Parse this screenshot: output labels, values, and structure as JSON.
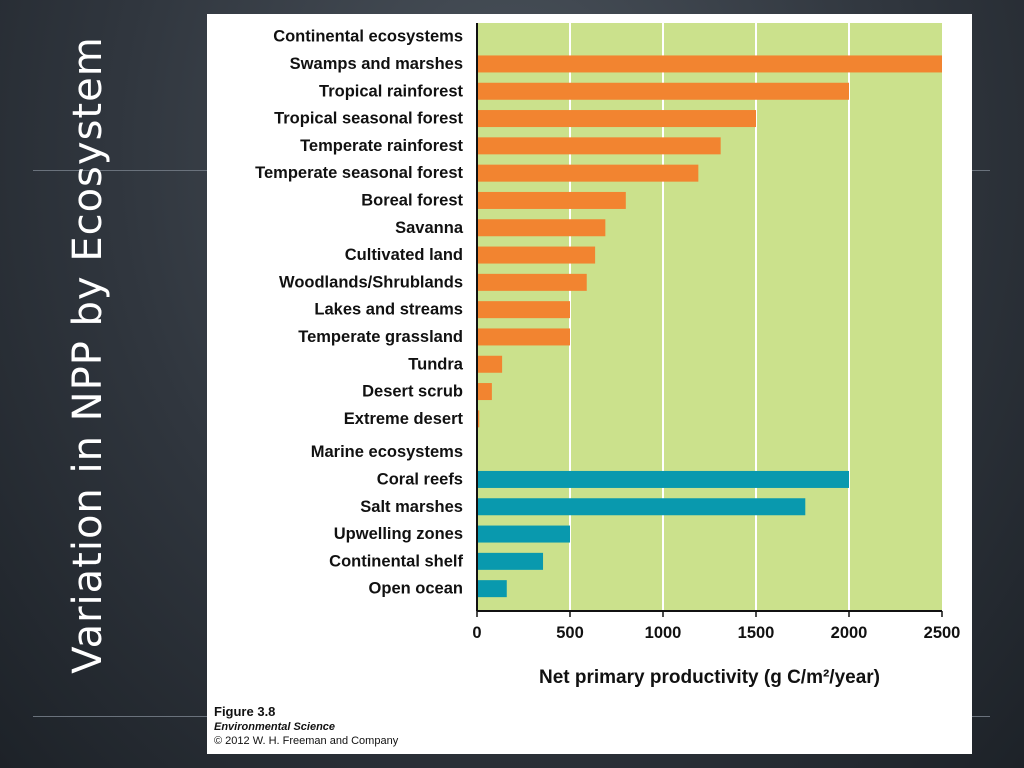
{
  "slide": {
    "title": "Variation in NPP by Ecosystem"
  },
  "figure": {
    "number": "Figure 3.8",
    "book": "Environmental Science",
    "copyright": "© 2012 W. H. Freeman and Company"
  },
  "colors": {
    "continental": "#f28430",
    "marine": "#0999ae",
    "plot_background": "#cbe18c",
    "gridline": "#ffffff"
  },
  "chart_data": {
    "type": "bar",
    "orientation": "horizontal",
    "xlabel": "Net primary productivity (g C/m²/year)",
    "xlim": [
      0,
      2500
    ],
    "xticks": [
      0,
      500,
      1000,
      1500,
      2000,
      2500
    ],
    "grid": true,
    "groups": [
      {
        "name": "Continental ecosystems",
        "color": "#f28430",
        "categories": [
          "Swamps and marshes",
          "Tropical rainforest",
          "Tropical seasonal forest",
          "Temperate rainforest",
          "Temperate seasonal forest",
          "Boreal forest",
          "Savanna",
          "Cultivated land",
          "Woodlands/Shrublands",
          "Lakes and streams",
          "Temperate grassland",
          "Tundra",
          "Desert scrub",
          "Extreme desert"
        ],
        "values": [
          2500,
          2000,
          1500,
          1310,
          1190,
          800,
          690,
          635,
          590,
          500,
          500,
          135,
          80,
          12
        ]
      },
      {
        "name": "Marine ecosystems",
        "color": "#0999ae",
        "categories": [
          "Coral reefs",
          "Salt marshes",
          "Upwelling zones",
          "Continental shelf",
          "Open ocean"
        ],
        "values": [
          2000,
          1765,
          500,
          355,
          160
        ]
      }
    ]
  }
}
